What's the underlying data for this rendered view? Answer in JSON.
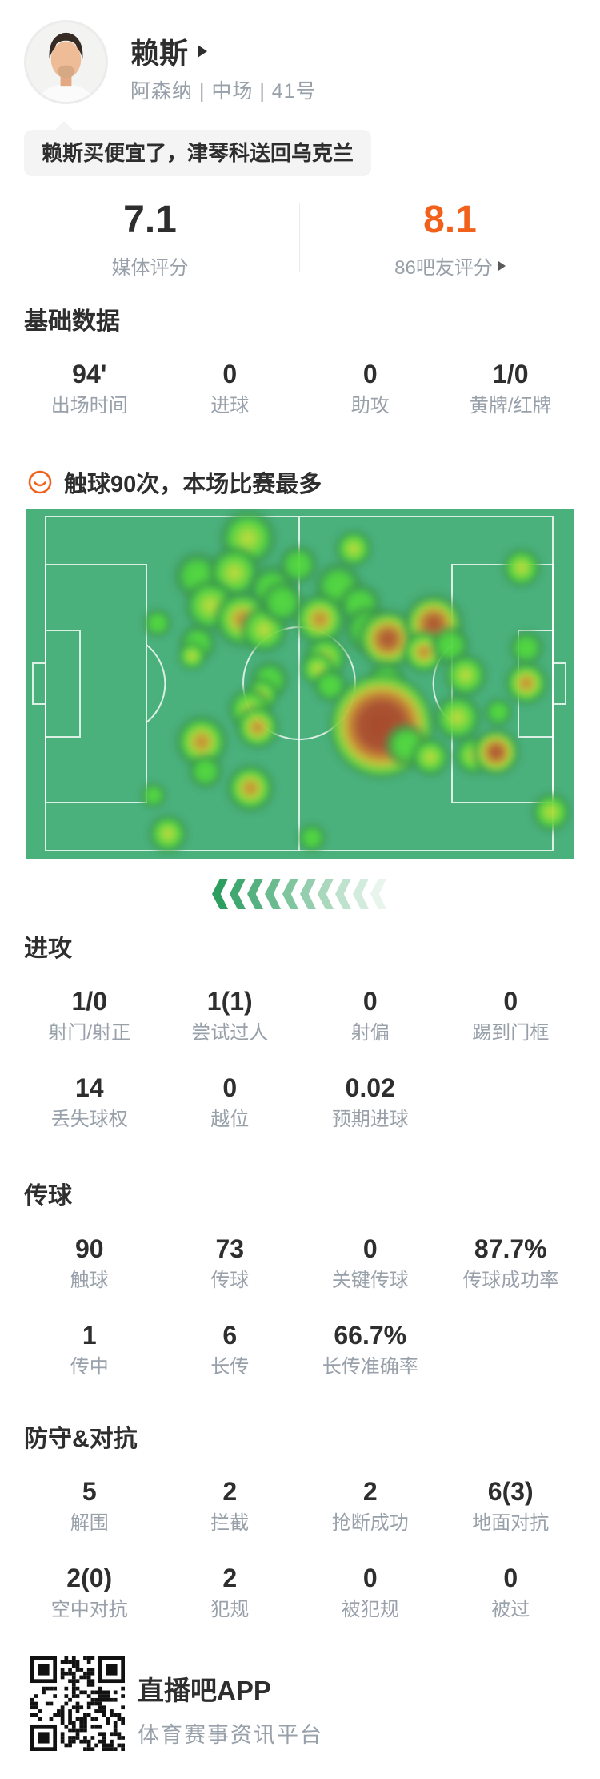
{
  "player": {
    "name": "赖斯",
    "meta": "阿森纳 | 中场 | 41号",
    "quote": "赖斯买便宜了，津琴科送回乌克兰"
  },
  "ratings": {
    "media_value": "7.1",
    "media_label": "媒体评分",
    "fan_value": "8.1",
    "fan_label": "86吧友评分",
    "fan_accent": "#f2611c"
  },
  "touches_note": "触球90次，本场比赛最多",
  "smiley_color": "#f2611c",
  "sections": [
    {
      "id": "basic",
      "title": "基础数据",
      "rows": [
        [
          [
            "94'",
            "出场时间"
          ],
          [
            "0",
            "进球"
          ],
          [
            "0",
            "助攻"
          ],
          [
            "1/0",
            "黄牌/红牌"
          ]
        ]
      ]
    },
    {
      "id": "attack",
      "title": "进攻",
      "rows": [
        [
          [
            "1/0",
            "射门/射正"
          ],
          [
            "1(1)",
            "尝试过人"
          ],
          [
            "0",
            "射偏"
          ],
          [
            "0",
            "踢到门框"
          ]
        ],
        [
          [
            "14",
            "丢失球权"
          ],
          [
            "0",
            "越位"
          ],
          [
            "0.02",
            "预期进球"
          ]
        ]
      ]
    },
    {
      "id": "passing",
      "title": "传球",
      "rows": [
        [
          [
            "90",
            "触球"
          ],
          [
            "73",
            "传球"
          ],
          [
            "0",
            "关键传球"
          ],
          [
            "87.7%",
            "传球成功率"
          ]
        ],
        [
          [
            "1",
            "传中"
          ],
          [
            "6",
            "长传"
          ],
          [
            "66.7%",
            "长传准确率"
          ]
        ]
      ]
    },
    {
      "id": "defense",
      "title": "防守&对抗",
      "rows": [
        [
          [
            "5",
            "解围"
          ],
          [
            "2",
            "拦截"
          ],
          [
            "2",
            "抢断成功"
          ],
          [
            "6(3)",
            "地面对抗"
          ]
        ],
        [
          [
            "2(0)",
            "空中对抗"
          ],
          [
            "2",
            "犯规"
          ],
          [
            "0",
            "被犯规"
          ],
          [
            "0",
            "被过"
          ]
        ]
      ]
    }
  ],
  "heatmap": {
    "pitch_color": "#4ab07c",
    "line_color": "#ffffff",
    "points": [
      [
        277,
        37,
        26,
        2
      ],
      [
        409,
        50,
        17,
        2
      ],
      [
        619,
        74,
        18,
        2
      ],
      [
        214,
        84,
        22,
        1
      ],
      [
        260,
        80,
        24,
        2
      ],
      [
        307,
        100,
        22,
        1
      ],
      [
        340,
        70,
        18,
        1
      ],
      [
        390,
        97,
        22,
        1
      ],
      [
        230,
        121,
        24,
        2
      ],
      [
        270,
        138,
        26,
        3
      ],
      [
        297,
        151,
        22,
        2
      ],
      [
        320,
        117,
        20,
        1
      ],
      [
        367,
        138,
        24,
        3
      ],
      [
        417,
        120,
        20,
        1
      ],
      [
        164,
        143,
        13,
        1
      ],
      [
        214,
        168,
        17,
        1
      ],
      [
        207,
        184,
        13,
        2
      ],
      [
        427,
        151,
        22,
        1
      ],
      [
        452,
        163,
        28,
        4
      ],
      [
        509,
        144,
        28,
        4
      ],
      [
        497,
        179,
        20,
        3
      ],
      [
        530,
        171,
        18,
        1
      ],
      [
        374,
        186,
        20,
        2
      ],
      [
        364,
        200,
        16,
        2
      ],
      [
        380,
        221,
        16,
        1
      ],
      [
        304,
        214,
        18,
        1
      ],
      [
        294,
        233,
        16,
        2
      ],
      [
        549,
        208,
        20,
        2
      ],
      [
        625,
        174,
        16,
        1
      ],
      [
        625,
        218,
        20,
        3
      ],
      [
        590,
        254,
        13,
        1
      ],
      [
        539,
        261,
        22,
        2
      ],
      [
        450,
        215,
        18,
        1
      ],
      [
        444,
        271,
        46,
        5
      ],
      [
        475,
        295,
        20,
        1
      ],
      [
        505,
        310,
        18,
        2
      ],
      [
        559,
        308,
        18,
        2
      ],
      [
        587,
        304,
        22,
        4
      ],
      [
        219,
        291,
        24,
        3
      ],
      [
        279,
        251,
        20,
        2
      ],
      [
        289,
        273,
        20,
        3
      ],
      [
        224,
        328,
        16,
        1
      ],
      [
        280,
        349,
        22,
        3
      ],
      [
        159,
        358,
        12,
        1
      ],
      [
        177,
        406,
        18,
        2
      ],
      [
        357,
        411,
        13,
        1
      ],
      [
        656,
        379,
        18,
        2
      ]
    ]
  },
  "chevrons": {
    "count": 10,
    "from": [
      43,
      158,
      96
    ],
    "to": [
      232,
      245,
      236
    ]
  },
  "footer": {
    "app_name": "直播吧APP",
    "tagline": "体育赛事资讯平台"
  }
}
